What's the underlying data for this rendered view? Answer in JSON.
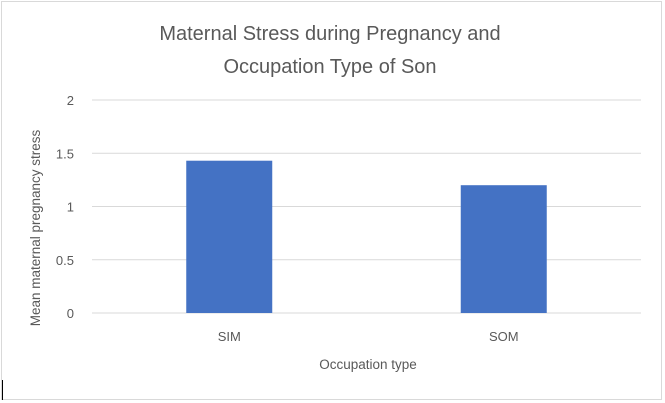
{
  "chart_data": {
    "type": "bar",
    "title_lines": [
      "Maternal Stress during Pregnancy and",
      "Occupation Type of Son"
    ],
    "categories": [
      "SIM",
      "SOM"
    ],
    "series": [
      {
        "values": [
          1.43,
          1.2
        ]
      }
    ],
    "xlabel": "Occupation type",
    "ylabel": "Mean maternal pregnancy stress",
    "ylim": [
      0,
      2
    ],
    "yticks": [
      "0",
      "0.5",
      "1",
      "1.5",
      "2"
    ],
    "ytick_values": [
      0,
      0.5,
      1,
      1.5,
      2
    ],
    "grid": true,
    "legend": "none",
    "bar_color": "#4472c4",
    "grid_color": "#d9d9d9"
  }
}
